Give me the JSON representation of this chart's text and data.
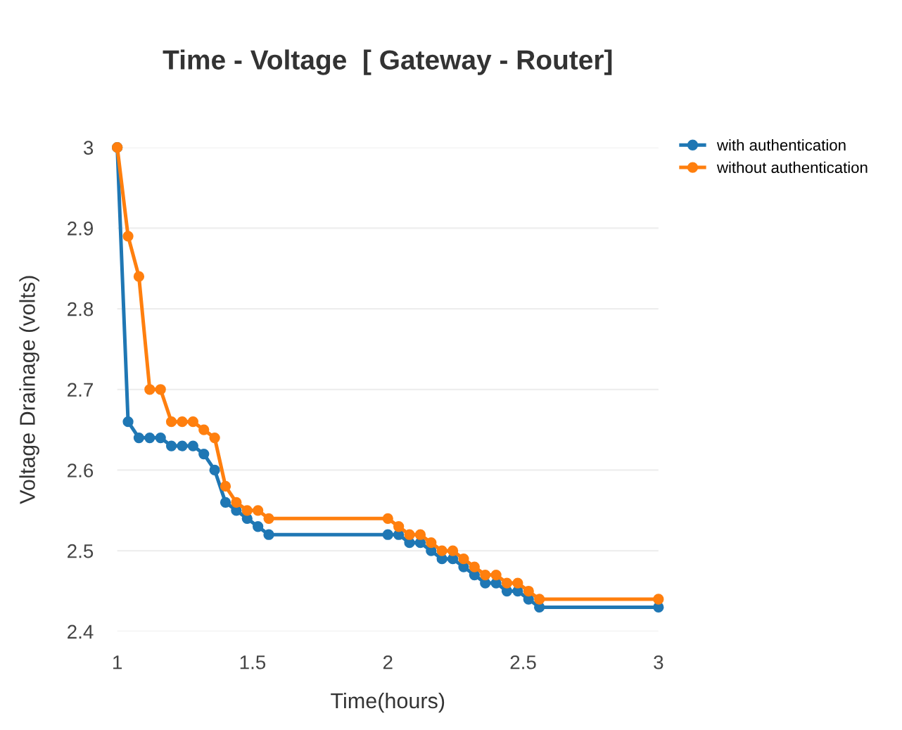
{
  "chart_data": {
    "type": "line",
    "title": "Time - Voltage  [ Gateway - Router]",
    "xlabel": "Time(hours)",
    "ylabel": "Voltage Drainage (volts)",
    "series": [
      {
        "name": "with authentication",
        "color": "#1f77b4",
        "x": [
          1,
          1.04,
          1.08,
          1.12,
          1.16,
          1.2,
          1.24,
          1.28,
          1.32,
          1.36,
          1.4,
          1.44,
          1.48,
          1.52,
          1.56,
          2,
          2.04,
          2.08,
          2.12,
          2.16,
          2.2,
          2.24,
          2.28,
          2.32,
          2.36,
          2.4,
          2.44,
          2.48,
          2.52,
          2.56,
          3
        ],
        "values": [
          3.0,
          2.66,
          2.64,
          2.64,
          2.64,
          2.63,
          2.63,
          2.63,
          2.62,
          2.6,
          2.56,
          2.55,
          2.54,
          2.53,
          2.52,
          2.52,
          2.52,
          2.51,
          2.51,
          2.5,
          2.49,
          2.49,
          2.48,
          2.47,
          2.46,
          2.46,
          2.45,
          2.45,
          2.44,
          2.43,
          2.43
        ]
      },
      {
        "name": "without authentication",
        "color": "#ff7f0e",
        "x": [
          1,
          1.04,
          1.08,
          1.12,
          1.16,
          1.2,
          1.24,
          1.28,
          1.32,
          1.36,
          1.4,
          1.44,
          1.48,
          1.52,
          1.56,
          2,
          2.04,
          2.08,
          2.12,
          2.16,
          2.2,
          2.24,
          2.28,
          2.32,
          2.36,
          2.4,
          2.44,
          2.48,
          2.52,
          2.56,
          3
        ],
        "values": [
          3.0,
          2.89,
          2.84,
          2.7,
          2.7,
          2.66,
          2.66,
          2.66,
          2.65,
          2.64,
          2.58,
          2.56,
          2.55,
          2.55,
          2.54,
          2.54,
          2.53,
          2.52,
          2.52,
          2.51,
          2.5,
          2.5,
          2.49,
          2.48,
          2.47,
          2.47,
          2.46,
          2.46,
          2.45,
          2.44,
          2.44
        ]
      }
    ],
    "xlim": [
      1,
      3
    ],
    "xticks": [
      1,
      1.5,
      2,
      2.5,
      3
    ],
    "ylim": [
      2.4,
      3.0
    ],
    "yticks": [
      2.4,
      2.5,
      2.6,
      2.7,
      2.8,
      2.9,
      3
    ],
    "grid": "y",
    "legend": "top right",
    "marker": "circle",
    "line_style": "solid"
  }
}
